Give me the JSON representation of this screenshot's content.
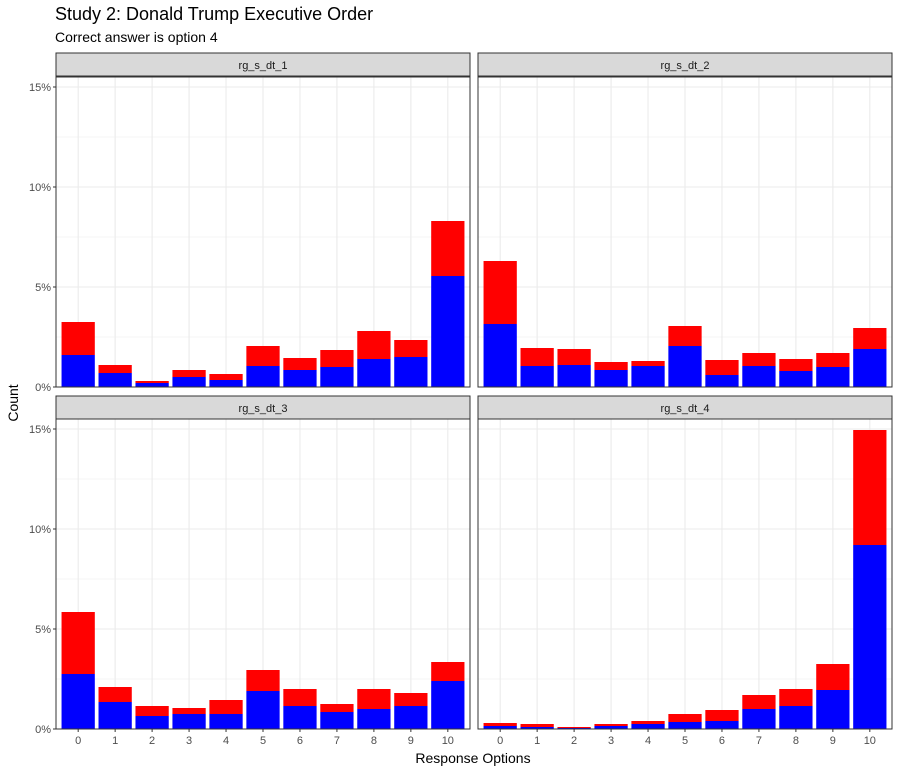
{
  "title": "Study 2: Donald Trump Executive Order",
  "subtitle": "Correct answer is option 4",
  "xlabel": "Response Options",
  "ylabel": "Count",
  "colors": {
    "bottom": "#0000ff",
    "top": "#ff0000",
    "strip": "#d9d9d9",
    "grid": "#ebebeb"
  },
  "chart_data": {
    "type": "bar",
    "stacked": true,
    "facets": [
      "rg_s_dt_1",
      "rg_s_dt_2",
      "rg_s_dt_3",
      "rg_s_dt_4"
    ],
    "categories": [
      "0",
      "1",
      "2",
      "3",
      "4",
      "5",
      "6",
      "7",
      "8",
      "9",
      "10"
    ],
    "ylim": [
      0,
      15.5
    ],
    "yticks": [
      0,
      5,
      10,
      15
    ],
    "ytick_labels": [
      "0%",
      "5%",
      "10%",
      "15%"
    ],
    "grid": true,
    "panels": [
      {
        "facet": "rg_s_dt_1",
        "blue": [
          1.6,
          0.7,
          0.2,
          0.5,
          0.35,
          1.05,
          0.85,
          1.0,
          1.4,
          1.5,
          5.55
        ],
        "red": [
          1.65,
          0.4,
          0.1,
          0.35,
          0.3,
          1.0,
          0.6,
          0.85,
          1.4,
          0.85,
          2.75
        ]
      },
      {
        "facet": "rg_s_dt_2",
        "blue": [
          3.15,
          1.05,
          1.1,
          0.85,
          1.05,
          2.05,
          0.6,
          1.05,
          0.8,
          1.0,
          1.9
        ],
        "red": [
          3.15,
          0.9,
          0.8,
          0.4,
          0.25,
          1.0,
          0.75,
          0.65,
          0.6,
          0.7,
          1.05
        ]
      },
      {
        "facet": "rg_s_dt_3",
        "blue": [
          2.75,
          1.35,
          0.65,
          0.75,
          0.75,
          1.9,
          1.15,
          0.85,
          1.0,
          1.15,
          2.4
        ],
        "red": [
          3.1,
          0.75,
          0.5,
          0.3,
          0.7,
          1.05,
          0.85,
          0.4,
          1.0,
          0.65,
          0.95
        ]
      },
      {
        "facet": "rg_s_dt_4",
        "blue": [
          0.15,
          0.1,
          0.05,
          0.15,
          0.25,
          0.35,
          0.4,
          1.0,
          1.15,
          1.95,
          9.2
        ],
        "red": [
          0.15,
          0.15,
          0.05,
          0.1,
          0.15,
          0.4,
          0.55,
          0.7,
          0.85,
          1.3,
          5.75
        ]
      }
    ]
  }
}
